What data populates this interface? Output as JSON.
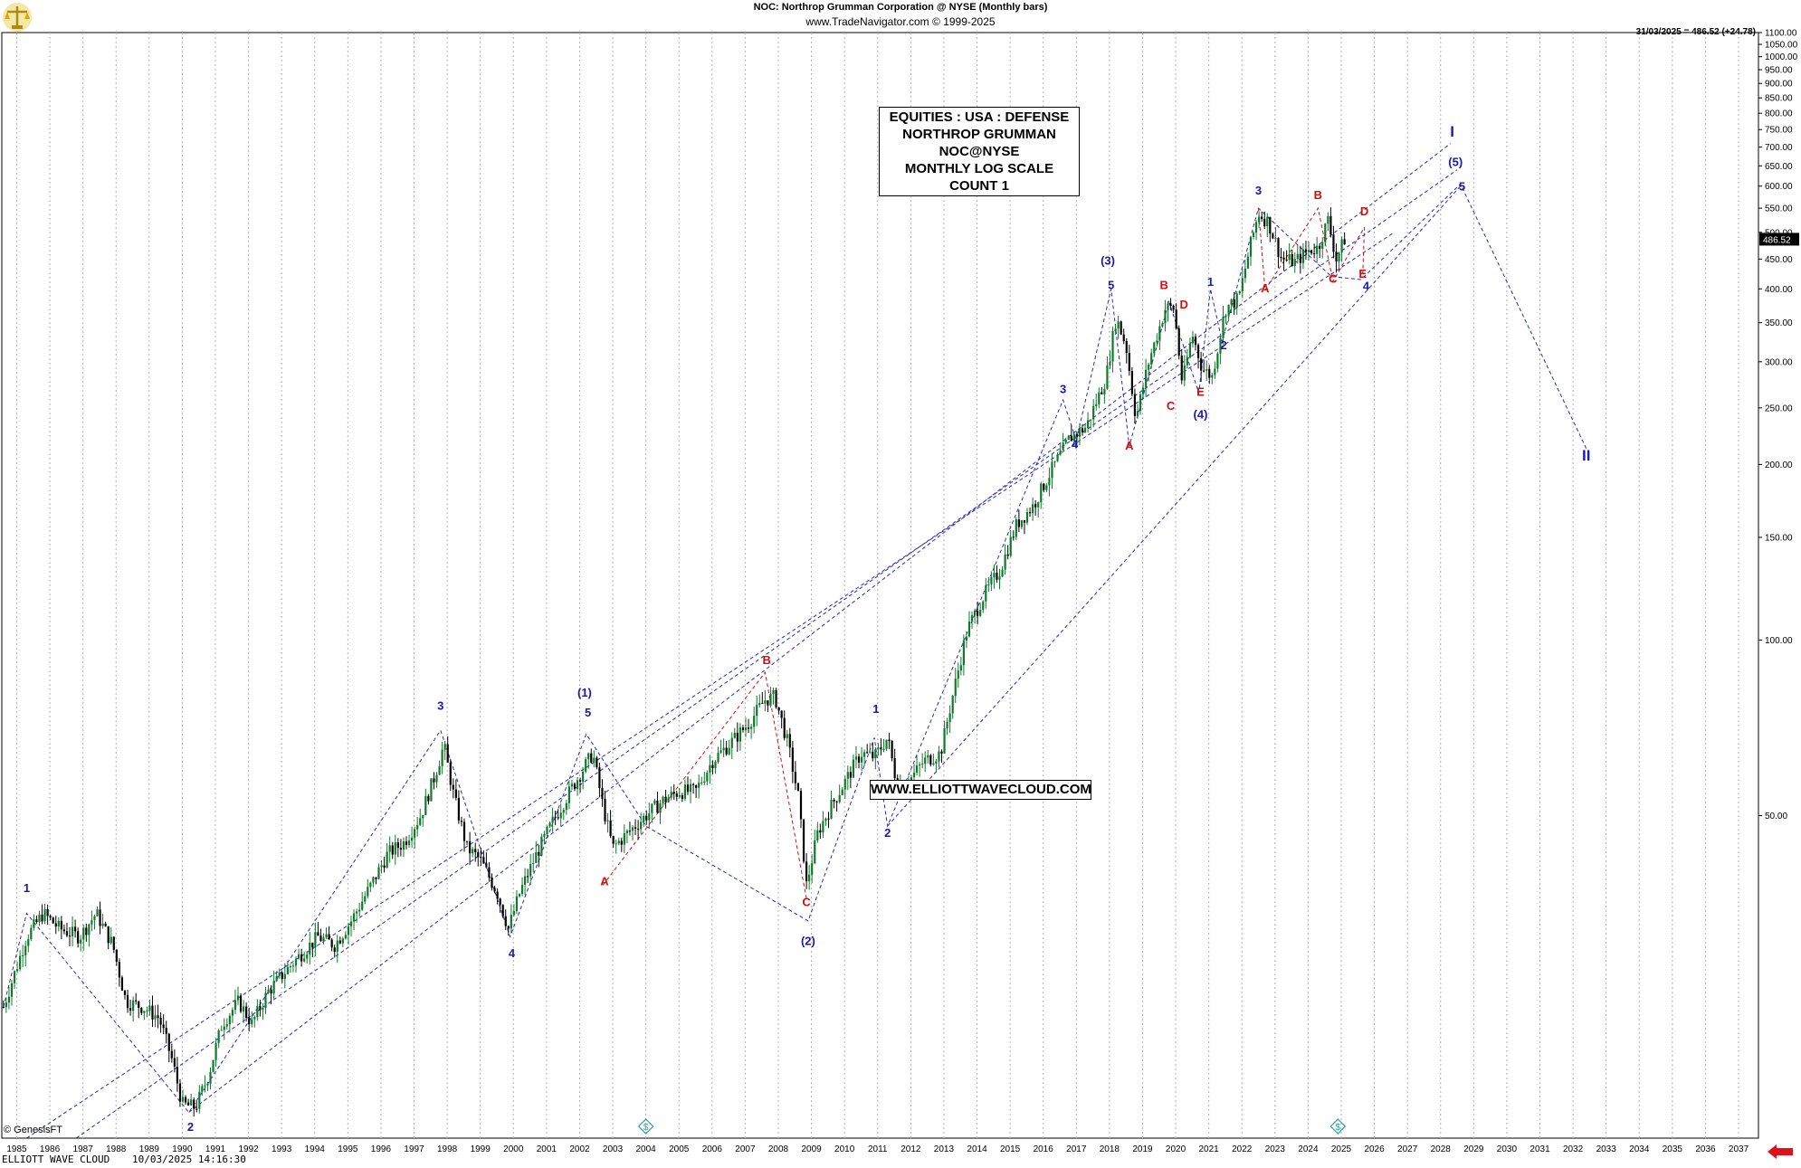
{
  "header": {
    "title": "NOC:  Northrop Grumman Corporation @ NYSE  (Monthly bars)",
    "subtitle": "www.TradeNavigator.com © 1999-2025"
  },
  "last_price": {
    "label": "31/03/2025 = 486.52 (+24.78)",
    "marker": "486.52"
  },
  "info_box": {
    "lines": [
      "EQUITIES : USA : DEFENSE",
      "NORTHROP GRUMMAN",
      "NOC@NYSE",
      "MONTHLY LOG SCALE",
      "COUNT 1"
    ]
  },
  "website_label": "WWW.ELLIOTTWAVECLOUD.COM",
  "copyright": "© GenesisFT",
  "footer": {
    "left": "ELLIOTT WAVE CLOUD",
    "datetime": "10/03/2025 14:16:30"
  },
  "icons": {
    "logo": "scales-of-justice-icon",
    "nav": "left-arrow-icon",
    "dividend": "dollar-diamond-icon"
  },
  "colors": {
    "candle_up": "#0f7a2a",
    "candle_down": "#000000",
    "wave_blue": "#1a1ab0",
    "wave_red": "#d01010",
    "trendline": "#2a2ab8",
    "grid": "#b0b0b0",
    "nav_arrow": "#e0101a",
    "dividend_marker": "#2aa39a"
  },
  "chart_data": {
    "type": "candlestick",
    "scale": "log",
    "ylim": [
      14,
      1100
    ],
    "x_range": [
      1984.55,
      2037.6
    ],
    "x_ticks": [
      "1985",
      "1986",
      "1987",
      "1988",
      "1989",
      "1990",
      "1991",
      "1992",
      "1993",
      "1994",
      "1995",
      "1996",
      "1997",
      "1998",
      "1999",
      "2000",
      "2001",
      "2002",
      "2003",
      "2004",
      "2005",
      "2006",
      "2007",
      "2008",
      "2009",
      "2010",
      "2011",
      "2012",
      "2013",
      "2014",
      "2015",
      "2016",
      "2017",
      "2018",
      "2019",
      "2020",
      "2021",
      "2022",
      "2023",
      "2024",
      "2025",
      "2026",
      "2027",
      "2028",
      "2029",
      "2030",
      "2031",
      "2032",
      "2033",
      "2034",
      "2035",
      "2036",
      "2037"
    ],
    "y_ticks": [
      "1100.00",
      "1050.00",
      "1000.00",
      "950.00",
      "900.00",
      "850.00",
      "800.00",
      "750.00",
      "700.00",
      "650.00",
      "600.00",
      "550.00",
      "500.00",
      "450.00",
      "400.00",
      "350.00",
      "300.00",
      "250.00",
      "200.00",
      "150.00",
      "100.00",
      "50.00"
    ],
    "price_path": [
      [
        1984.6,
        23.5
      ],
      [
        1985.3,
        31
      ],
      [
        1985.8,
        34
      ],
      [
        1986.3,
        32
      ],
      [
        1986.9,
        31
      ],
      [
        1987.4,
        34
      ],
      [
        1987.9,
        30
      ],
      [
        1988.3,
        24
      ],
      [
        1988.8,
        23.5
      ],
      [
        1989.3,
        22.5
      ],
      [
        1989.7,
        19
      ],
      [
        1990.0,
        16
      ],
      [
        1990.4,
        15.8
      ],
      [
        1990.8,
        18
      ],
      [
        1991.2,
        22
      ],
      [
        1991.7,
        24
      ],
      [
        1992.1,
        22
      ],
      [
        1992.6,
        25
      ],
      [
        1993.1,
        27
      ],
      [
        1993.6,
        29
      ],
      [
        1994.1,
        31
      ],
      [
        1994.6,
        30
      ],
      [
        1995.1,
        33
      ],
      [
        1995.7,
        38
      ],
      [
        1996.2,
        43
      ],
      [
        1996.7,
        45
      ],
      [
        1997.2,
        50
      ],
      [
        1997.6,
        58
      ],
      [
        1997.9,
        66
      ],
      [
        1998.2,
        54
      ],
      [
        1998.6,
        44
      ],
      [
        1999.0,
        42
      ],
      [
        1999.5,
        37
      ],
      [
        1999.85,
        32
      ],
      [
        2000.2,
        37
      ],
      [
        2000.7,
        43
      ],
      [
        2001.2,
        49
      ],
      [
        2001.7,
        55
      ],
      [
        2002.1,
        60
      ],
      [
        2002.4,
        64
      ],
      [
        2002.7,
        52
      ],
      [
        2003.0,
        44
      ],
      [
        2003.5,
        47
      ],
      [
        2004.0,
        50
      ],
      [
        2004.5,
        53
      ],
      [
        2005.0,
        55
      ],
      [
        2005.5,
        55
      ],
      [
        2006.0,
        62
      ],
      [
        2006.6,
        67
      ],
      [
        2007.1,
        72
      ],
      [
        2007.6,
        79
      ],
      [
        2007.9,
        80
      ],
      [
        2008.3,
        66
      ],
      [
        2008.6,
        54
      ],
      [
        2008.85,
        38
      ],
      [
        2009.2,
        47
      ],
      [
        2009.6,
        52
      ],
      [
        2010.0,
        57
      ],
      [
        2010.5,
        64
      ],
      [
        2010.9,
        63
      ],
      [
        2011.3,
        68
      ],
      [
        2011.6,
        56
      ],
      [
        2011.9,
        57
      ],
      [
        2012.4,
        62
      ],
      [
        2012.9,
        64
      ],
      [
        2013.3,
        82
      ],
      [
        2013.7,
        104
      ],
      [
        2014.2,
        119
      ],
      [
        2014.7,
        132
      ],
      [
        2015.2,
        158
      ],
      [
        2015.7,
        170
      ],
      [
        2016.3,
        198
      ],
      [
        2016.8,
        222
      ],
      [
        2017.3,
        232
      ],
      [
        2017.9,
        282
      ],
      [
        2018.2,
        357
      ],
      [
        2018.5,
        320
      ],
      [
        2018.8,
        240
      ],
      [
        2019.2,
        302
      ],
      [
        2019.7,
        372
      ],
      [
        2019.95,
        370
      ],
      [
        2020.2,
        275
      ],
      [
        2020.5,
        335
      ],
      [
        2020.8,
        292
      ],
      [
        2021.1,
        283
      ],
      [
        2021.5,
        370
      ],
      [
        2021.9,
        385
      ],
      [
        2022.2,
        460
      ],
      [
        2022.5,
        540
      ],
      [
        2022.8,
        520
      ],
      [
        2023.2,
        450
      ],
      [
        2023.6,
        445
      ],
      [
        2024.0,
        465
      ],
      [
        2024.3,
        470
      ],
      [
        2024.6,
        525
      ],
      [
        2024.85,
        450
      ],
      [
        2025.1,
        486.52
      ]
    ],
    "wave_labels": [
      {
        "text": "1",
        "x": 1985.3,
        "y": 37,
        "color": "blue"
      },
      {
        "text": "2",
        "x": 1990.25,
        "y": 14.4,
        "color": "blue"
      },
      {
        "text": "3",
        "x": 1997.8,
        "y": 76,
        "color": "blue"
      },
      {
        "text": "4",
        "x": 1999.95,
        "y": 28.6,
        "color": "blue"
      },
      {
        "text": "(1)",
        "x": 2002.15,
        "y": 80,
        "color": "blue"
      },
      {
        "text": "5",
        "x": 2002.25,
        "y": 74,
        "color": "blue"
      },
      {
        "text": "A",
        "x": 2002.75,
        "y": 38,
        "color": "red"
      },
      {
        "text": "B",
        "x": 2007.65,
        "y": 91,
        "color": "red"
      },
      {
        "text": "C",
        "x": 2008.85,
        "y": 35,
        "color": "red"
      },
      {
        "text": "(2)",
        "x": 2008.9,
        "y": 30,
        "color": "blue"
      },
      {
        "text": "1",
        "x": 2010.95,
        "y": 75,
        "color": "blue"
      },
      {
        "text": "2",
        "x": 2011.3,
        "y": 46,
        "color": "blue"
      },
      {
        "text": "3",
        "x": 2016.6,
        "y": 265,
        "color": "blue"
      },
      {
        "text": "4",
        "x": 2016.95,
        "y": 213,
        "color": "blue"
      },
      {
        "text": "(3)",
        "x": 2017.95,
        "y": 440,
        "color": "blue"
      },
      {
        "text": "5",
        "x": 2018.05,
        "y": 400,
        "color": "blue"
      },
      {
        "text": "A",
        "x": 2018.6,
        "y": 212,
        "color": "red"
      },
      {
        "text": "B",
        "x": 2019.65,
        "y": 400,
        "color": "red"
      },
      {
        "text": "C",
        "x": 2019.85,
        "y": 248,
        "color": "red"
      },
      {
        "text": "D",
        "x": 2020.25,
        "y": 370,
        "color": "red"
      },
      {
        "text": "E",
        "x": 2020.75,
        "y": 262,
        "color": "red"
      },
      {
        "text": "(4)",
        "x": 2020.75,
        "y": 240,
        "color": "blue"
      },
      {
        "text": "1",
        "x": 2021.05,
        "y": 405,
        "color": "blue"
      },
      {
        "text": "2",
        "x": 2021.45,
        "y": 315,
        "color": "blue"
      },
      {
        "text": "3",
        "x": 2022.5,
        "y": 580,
        "color": "blue"
      },
      {
        "text": "A",
        "x": 2022.7,
        "y": 395,
        "color": "red"
      },
      {
        "text": "B",
        "x": 2024.3,
        "y": 570,
        "color": "red"
      },
      {
        "text": "C",
        "x": 2024.75,
        "y": 410,
        "color": "red"
      },
      {
        "text": "D",
        "x": 2025.7,
        "y": 535,
        "color": "red"
      },
      {
        "text": "E",
        "x": 2025.65,
        "y": 418,
        "color": "red"
      },
      {
        "text": "4",
        "x": 2025.75,
        "y": 398,
        "color": "blue"
      },
      {
        "text": "(5)",
        "x": 2028.45,
        "y": 650,
        "color": "blue"
      },
      {
        "text": "5",
        "x": 2028.65,
        "y": 590,
        "color": "blue"
      },
      {
        "text": "I",
        "x": 2028.35,
        "y": 730,
        "color": "blue"
      },
      {
        "text": "II",
        "x": 2032.4,
        "y": 203,
        "color": "blue"
      }
    ],
    "trend_lines": [
      [
        [
          1984.6,
          23.5
        ],
        [
          1985.3,
          34
        ],
        [
          1990.2,
          15.5
        ],
        [
          1997.8,
          70
        ],
        [
          1999.9,
          31
        ],
        [
          2002.2,
          69
        ],
        [
          2004.0,
          48
        ],
        [
          2008.9,
          33
        ],
        [
          2010.9,
          68
        ],
        [
          2011.3,
          48
        ],
        [
          2016.6,
          258
        ],
        [
          2017.0,
          220
        ],
        [
          2018.05,
          400
        ],
        [
          2018.6,
          215
        ],
        [
          2019.8,
          380
        ],
        [
          2020.7,
          265
        ],
        [
          2021.05,
          400
        ],
        [
          2021.4,
          325
        ],
        [
          2022.5,
          550
        ],
        [
          2024.7,
          420
        ],
        [
          2025.6,
          415
        ],
        [
          2028.6,
          605
        ],
        [
          2032.4,
          213
        ]
      ],
      [
        [
          2002.7,
          38
        ],
        [
          2007.6,
          88
        ],
        [
          2008.85,
          36
        ]
      ],
      [
        [
          2022.5,
          550
        ],
        [
          2022.7,
          398
        ],
        [
          2024.3,
          550
        ],
        [
          2024.75,
          412
        ],
        [
          2025.7,
          510
        ],
        [
          2025.65,
          425
        ]
      ],
      [
        [
          1985.3,
          14
        ],
        [
          2026.6,
          500
        ]
      ],
      [
        [
          1986.8,
          14
        ],
        [
          2028.5,
          640
        ]
      ],
      [
        [
          1990.2,
          15.5
        ],
        [
          2028.3,
          710
        ]
      ],
      [
        [
          2011.3,
          48
        ],
        [
          2028.6,
          600
        ]
      ]
    ]
  }
}
